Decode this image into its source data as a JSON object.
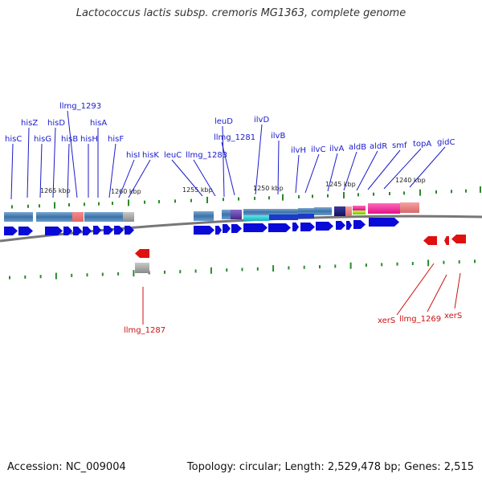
{
  "title": "Lactococcus lactis subsp. cremoris MG1363, complete genome",
  "footer": {
    "accession": "Accession: NC_009004",
    "summary": "Topology: circular; Length: 2,529,478 bp; Genes: 2,515"
  },
  "colors": {
    "forward_gene": "#0a0ad8",
    "reverse_gene": "#e01010",
    "forward_label": "#1a1acc",
    "reverse_label": "#cc1111",
    "backbone": "#777777",
    "tick": "#2a8a2a"
  },
  "scale": {
    "labels": [
      "1265 kbp",
      "1260 kbp",
      "1255 kbp",
      "1250 kbp",
      "1245 kbp",
      "1240 kbp"
    ]
  },
  "forward_labels": [
    "hisC",
    "hisZ",
    "hisG",
    "hisD",
    "hisB",
    "llmg_1293",
    "hisH",
    "hisA",
    "hisF",
    "hisI",
    "hisK",
    "leuC",
    "llmg_1283",
    "leuD",
    "llmg_1281",
    "ilvD",
    "ilvB",
    "ilvH",
    "ilvC",
    "ilvA",
    "aldB",
    "aldR",
    "smf",
    "topA",
    "gidC"
  ],
  "reverse_labels": [
    "llmg_1287",
    "xerS",
    "llmg_1269",
    "xerS"
  ]
}
